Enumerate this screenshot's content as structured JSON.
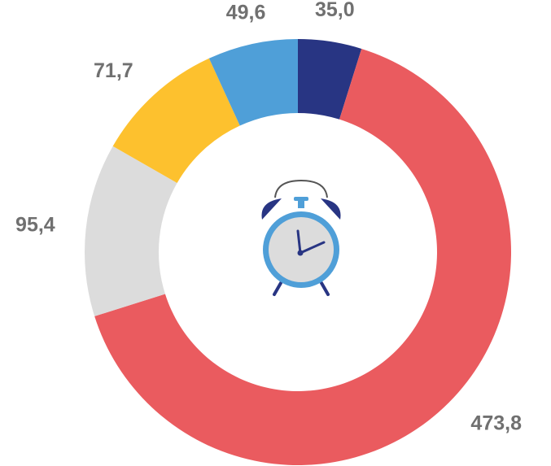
{
  "chart_data": {
    "type": "donut",
    "values": [
      35.0,
      473.8,
      95.4,
      71.7,
      49.6
    ],
    "value_labels": [
      "35,0",
      "473,8",
      "95,4",
      "71,7",
      "49,6"
    ],
    "colors": [
      "#283583",
      "#ea5b5f",
      "#dcdcdc",
      "#fdc12e",
      "#4f9fd8"
    ]
  }
}
